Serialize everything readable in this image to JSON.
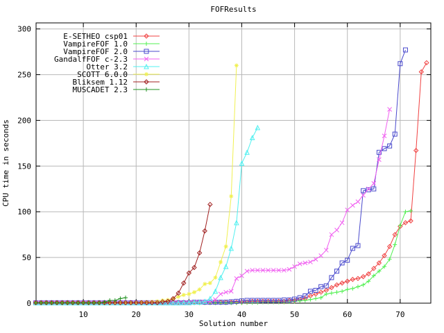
{
  "chart_data": {
    "type": "line",
    "title": "FOFResults",
    "xlabel": "Solution number",
    "ylabel": "CPU time in seconds",
    "xlim": [
      1.05,
      75.8
    ],
    "ylim": [
      0,
      306.6
    ],
    "x_ticks": [
      10,
      20,
      30,
      40,
      50,
      60,
      70
    ],
    "y_ticks": [
      0,
      50,
      100,
      150,
      200,
      250,
      300
    ],
    "grid": true,
    "grid_color": "#b8b8b8",
    "border_color": "#000000",
    "background": "#ffffff",
    "legend_position": "top-left-inside",
    "series": [
      {
        "name": "E-SETHEO csp01",
        "color": "#f04040",
        "marker": "diamond",
        "x_start": 1,
        "values": [
          0.5,
          0.5,
          0.5,
          0.5,
          0.5,
          0.5,
          0.5,
          0.5,
          0.5,
          0.5,
          0.5,
          0.5,
          0.5,
          0.5,
          0.5,
          0.5,
          0.5,
          0.5,
          0.5,
          0.5,
          0.5,
          0.5,
          0.5,
          0.5,
          0.5,
          1,
          1,
          1,
          1,
          1,
          1,
          1,
          1,
          1,
          1,
          1,
          1,
          1,
          1,
          1,
          1.5,
          2,
          2,
          2,
          2,
          2,
          2,
          2,
          3,
          3,
          4,
          5,
          8,
          10,
          12,
          14,
          17,
          20,
          22,
          24,
          26,
          27,
          29,
          32,
          38,
          44,
          52,
          62,
          75,
          84,
          88,
          90,
          167,
          253,
          263
        ]
      },
      {
        "name": "VampireFOF 1.0",
        "color": "#50f050",
        "marker": "plus",
        "x_start": 1,
        "values": [
          0.2,
          0.2,
          0.2,
          0.2,
          0.2,
          0.2,
          0.2,
          0.2,
          0.2,
          0.2,
          0.2,
          0.2,
          0.2,
          0.2,
          0.2,
          0.2,
          0.2,
          0.2,
          0.2,
          0.2,
          0.2,
          0.2,
          0.2,
          0.2,
          0.2,
          0.2,
          0.2,
          0.2,
          0.2,
          0.2,
          0.2,
          0.2,
          0.2,
          0.2,
          0.2,
          0.2,
          0.2,
          0.2,
          0.2,
          0.2,
          0.5,
          0.5,
          0.5,
          1,
          1,
          1,
          1,
          1,
          1.5,
          2,
          2.5,
          3,
          4,
          5,
          6,
          10,
          11,
          12,
          13,
          15,
          16,
          18,
          20,
          24,
          30,
          35,
          40,
          48,
          64,
          85,
          100,
          101
        ]
      },
      {
        "name": "VampireFOF 2.0",
        "color": "#4848cc",
        "marker": "square",
        "x_start": 1,
        "values": [
          0.5,
          0.5,
          0.5,
          0.5,
          0.5,
          0.5,
          0.5,
          0.5,
          0.5,
          0.5,
          0.5,
          0.5,
          0.5,
          0.5,
          0.5,
          0.5,
          0.5,
          0.5,
          0.5,
          0.5,
          0.5,
          0.5,
          0.5,
          0.5,
          0.5,
          0.5,
          0.5,
          0.5,
          0.5,
          0.5,
          1,
          1,
          1,
          1,
          1,
          1,
          1,
          1.5,
          2,
          2.5,
          3,
          3,
          3,
          3,
          3,
          3,
          3,
          3.5,
          3.5,
          4.5,
          6,
          8,
          13,
          14,
          18,
          19,
          28,
          35,
          44,
          47,
          60,
          63,
          123,
          124,
          125,
          165,
          169,
          172,
          185,
          262,
          277
        ]
      },
      {
        "name": "GandalfFOF c-2.3",
        "color": "#f060f0",
        "marker": "x",
        "x_start": 1,
        "values": [
          0.5,
          0.5,
          0.5,
          0.5,
          0.5,
          0.5,
          0.5,
          0.5,
          0.5,
          0.5,
          0.5,
          0.5,
          0.5,
          0.5,
          0.5,
          0.5,
          0.5,
          0.5,
          0.5,
          0.5,
          0.5,
          0.5,
          0.5,
          0.5,
          0.5,
          0.5,
          0.5,
          0.5,
          0.5,
          0.5,
          1,
          1,
          1.5,
          2,
          4,
          10,
          12,
          13,
          27,
          30,
          35,
          36,
          36,
          36,
          36,
          36,
          36,
          36,
          37,
          40,
          43,
          44,
          45,
          48,
          52,
          58,
          75,
          80,
          88,
          102,
          107,
          111,
          118,
          125,
          131,
          157,
          183,
          212
        ]
      },
      {
        "name": "Otter 3.2",
        "color": "#50f0f0",
        "marker": "triangle",
        "x_start": 1,
        "values": [
          0.3,
          0.3,
          0.3,
          0.3,
          0.3,
          0.3,
          0.3,
          0.3,
          0.3,
          0.3,
          0.3,
          0.3,
          0.3,
          0.3,
          0.3,
          0.3,
          0.3,
          0.3,
          0.3,
          0.3,
          0.3,
          0.3,
          0.3,
          0.3,
          0.3,
          0.3,
          0.3,
          0.3,
          0.5,
          0.5,
          1,
          1,
          2,
          5,
          13,
          28,
          40,
          60,
          88,
          153,
          165,
          181,
          192
        ]
      },
      {
        "name": "SCOTT 6.0.0",
        "color": "#f0f050",
        "marker": "asterisk",
        "x_start": 1,
        "values": [
          0.5,
          0.5,
          0.5,
          0.5,
          0.5,
          0.5,
          0.5,
          0.5,
          0.5,
          0.5,
          0.5,
          0.5,
          0.5,
          0.5,
          0.5,
          0.5,
          0.5,
          0.5,
          0.5,
          0.5,
          1,
          1,
          1.5,
          2,
          3,
          3.5,
          4.5,
          7,
          9,
          10,
          12,
          15,
          21,
          22,
          28,
          45,
          62,
          117,
          260
        ]
      },
      {
        "name": "Bliksem 1.12",
        "color": "#a02020",
        "marker": "diamond",
        "x_start": 1,
        "values": [
          0.5,
          0.5,
          0.5,
          0.5,
          0.5,
          0.5,
          0.5,
          0.5,
          0.5,
          0.5,
          0.5,
          0.5,
          0.5,
          0.5,
          0.5,
          0.5,
          0.5,
          0.5,
          0.5,
          0.5,
          0.5,
          0.5,
          0.5,
          0.5,
          1.5,
          2,
          5,
          11,
          22,
          33,
          39,
          55,
          79,
          108
        ]
      },
      {
        "name": "MUSCADET 2.3",
        "color": "#209020",
        "marker": "plus",
        "x_start": 1,
        "values": [
          0.3,
          0.3,
          0.3,
          0.3,
          0.3,
          0.3,
          0.3,
          0.3,
          0.3,
          0.3,
          0.3,
          0.3,
          0.3,
          1,
          3,
          3,
          5,
          6
        ]
      }
    ]
  }
}
